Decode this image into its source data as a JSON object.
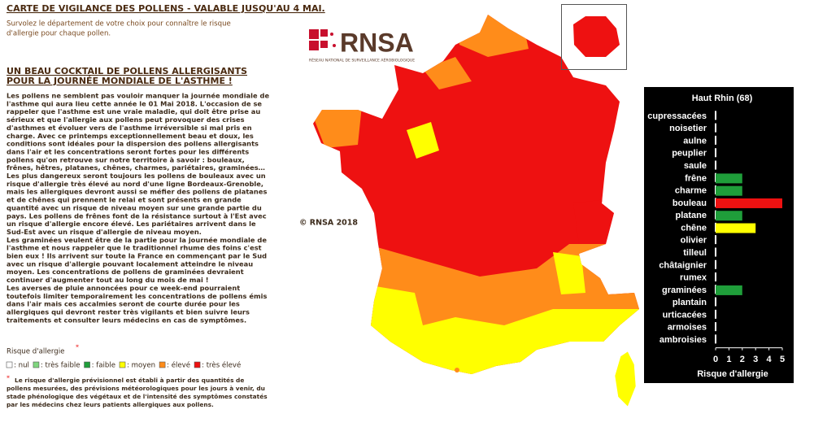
{
  "header": {
    "title": "CARTE DE VIGILANCE DES POLLENS - VALABLE JUSQU'AU 4 MAI.",
    "subtitle": [
      "Survolez le département de votre choix pour connaître le risque",
      "d'allergie pour chaque pollen."
    ]
  },
  "article": {
    "title": [
      "UN BEAU COCKTAIL DE POLLENS ALLERGISANTS",
      "POUR LA JOURNÉE MONDIALE DE L'ASTHME !"
    ],
    "body": [
      "Les pollens ne semblent pas vouloir manquer la journée mondiale de",
      "l'asthme qui aura lieu cette année le 01 Mai 2018. L'occasion de se",
      "rappeler que l'asthme est une vraie maladie, qui doit être prise au",
      "sérieux et que l'allergie aux pollens peut provoquer des crises",
      "d'asthmes et évoluer vers de l'asthme irréversible si mal pris en",
      "charge. Avec ce printemps exceptionnellement beau et doux, les",
      "conditions sont idéales pour la dispersion des pollens allergisants",
      "dans l'air et les concentrations seront fortes pour les différents",
      "pollens qu'on retrouve sur notre territoire à savoir : bouleaux,",
      "frênes, hêtres, platanes, chênes, charmes, pariétaires, graminées…",
      "Les plus dangereux seront toujours les pollens de bouleaux avec un",
      "risque d'allergie très élevé au nord d'une ligne Bordeaux-Grenoble,",
      "mais les allergiques devront aussi se méfier des pollens de platanes",
      "et de chênes qui prennent le relai et sont présents en grande",
      "quantité avec un risque de niveau moyen sur une grande partie du",
      "pays. Les pollens de frênes font de la résistance surtout à l'Est avec",
      "un risque d'allergie encore élevé. Les pariétaires arrivent dans le",
      "Sud-Est avec un risque d'allergie de niveau moyen.",
      "Les graminées veulent être de la partie pour la journée mondiale de",
      "l'asthme et nous rappeler que le traditionnel rhume des foins c'est",
      "bien eux ! Ils arrivent sur toute la France en commençant par le Sud",
      "avec un risque d'allergie pouvant localement atteindre le niveau",
      "moyen. Les concentrations de pollens de graminées devraient",
      "continuer d'augmenter tout au long du mois de mai !",
      "Les averses de pluie annoncées pour ce week-end pourraient",
      "toutefois limiter temporairement les concentrations de pollens émis",
      "dans l'air mais ces accalmies seront de courte durée pour les",
      "allergiques qui devront rester très vigilants et bien suivre leurs",
      "traitements et consulter leurs médecins en cas de symptômes."
    ]
  },
  "legend": {
    "title": "Risque d'allergie",
    "asterisk": "*",
    "items": [
      {
        "label": ": nul",
        "color": "#ffffff"
      },
      {
        "label": ": très faible",
        "color": "#7fd67f"
      },
      {
        "label": ": faible",
        "color": "#1f9e3a"
      },
      {
        "label": ": moyen",
        "color": "#ffff00"
      },
      {
        "label": ": élevé",
        "color": "#ff8c1a"
      },
      {
        "label": ": très élevé",
        "color": "#ee1111"
      }
    ]
  },
  "footnote": {
    "asterisk": "*",
    "lines": [
      "Le risque d'allergie prévisionnel est établi à partir des quantités de",
      "pollens mesurées, des prévisions météorologiques pour les jours à venir, du",
      "stade phénologique des végétaux et de l'intensité des symptômes constatés",
      "par les médecins chez leurs patients allergiques aux pollens."
    ]
  },
  "map": {
    "logo": "RNSA",
    "logo_subtitle": "RÉSEAU NATIONAL DE SURVEILLANCE AÉROBIOLOGIQUE",
    "copyright": "© RNSA 2018"
  },
  "chart_data": {
    "type": "bar",
    "orientation": "horizontal",
    "title": "Haut Rhin (68)",
    "categories": [
      "cupressacées",
      "noisetier",
      "aulne",
      "peuplier",
      "saule",
      "frêne",
      "charme",
      "bouleau",
      "platane",
      "chêne",
      "olivier",
      "tilleul",
      "châtaignier",
      "rumex",
      "graminées",
      "plantain",
      "urticacées",
      "armoises",
      "ambroisies"
    ],
    "values": [
      0,
      0,
      0,
      0,
      0,
      2,
      2,
      5,
      2,
      3,
      0,
      0,
      0,
      0,
      2,
      0,
      0,
      0,
      0
    ],
    "colors": [
      "#ffffff",
      "#ffffff",
      "#ffffff",
      "#ffffff",
      "#ffffff",
      "#1f9e3a",
      "#1f9e3a",
      "#ee1111",
      "#1f9e3a",
      "#ffff00",
      "#ffffff",
      "#ffffff",
      "#ffffff",
      "#ffffff",
      "#1f9e3a",
      "#ffffff",
      "#ffffff",
      "#ffffff",
      "#ffffff"
    ],
    "xlim": [
      0,
      5
    ],
    "xticks": [
      0,
      1,
      2,
      3,
      4,
      5
    ],
    "xlabel": "Risque d'allergie"
  }
}
